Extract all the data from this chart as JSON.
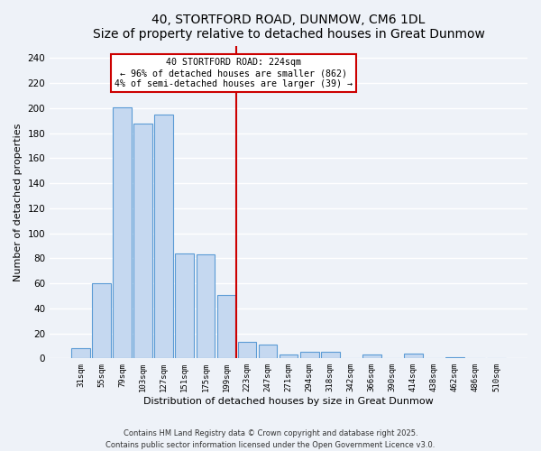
{
  "title": "40, STORTFORD ROAD, DUNMOW, CM6 1DL",
  "subtitle": "Size of property relative to detached houses in Great Dunmow",
  "xlabel": "Distribution of detached houses by size in Great Dunmow",
  "ylabel": "Number of detached properties",
  "categories": [
    "31sqm",
    "55sqm",
    "79sqm",
    "103sqm",
    "127sqm",
    "151sqm",
    "175sqm",
    "199sqm",
    "223sqm",
    "247sqm",
    "271sqm",
    "294sqm",
    "318sqm",
    "342sqm",
    "366sqm",
    "390sqm",
    "414sqm",
    "438sqm",
    "462sqm",
    "486sqm",
    "510sqm"
  ],
  "values": [
    8,
    60,
    201,
    188,
    195,
    84,
    83,
    51,
    13,
    11,
    3,
    5,
    5,
    0,
    3,
    0,
    4,
    0,
    1,
    0,
    0
  ],
  "bar_color": "#c5d8f0",
  "bar_edge_color": "#5b9bd5",
  "vline_x": 7.5,
  "vline_color": "#cc0000",
  "annotation_text": "40 STORTFORD ROAD: 224sqm\n← 96% of detached houses are smaller (862)\n4% of semi-detached houses are larger (39) →",
  "annotation_box_color": "#ffffff",
  "annotation_box_edge_color": "#cc0000",
  "ylim": [
    0,
    250
  ],
  "yticks": [
    0,
    20,
    40,
    60,
    80,
    100,
    120,
    140,
    160,
    180,
    200,
    220,
    240
  ],
  "background_color": "#eef2f8",
  "grid_color": "#ffffff",
  "footnote1": "Contains HM Land Registry data © Crown copyright and database right 2025.",
  "footnote2": "Contains public sector information licensed under the Open Government Licence v3.0."
}
